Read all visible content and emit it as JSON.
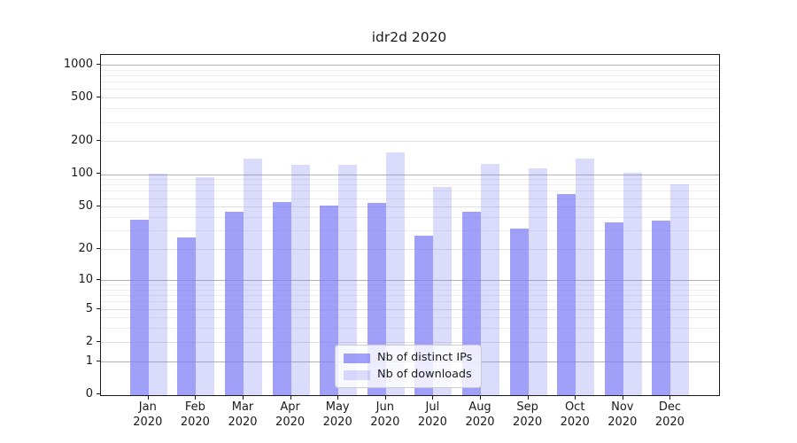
{
  "title": "idr2d 2020",
  "colors": {
    "bar_base": "#7c7cf6",
    "bar_dark_alpha": 0.72,
    "bar_light_alpha": 0.28,
    "grid_major": "#b2b2b2",
    "grid_light": "#e0e0e0",
    "grid_minor": "#eeeeee",
    "axis_frame": "#1a1a1a",
    "legend_border": "#cccccc"
  },
  "chart_data": {
    "type": "bar",
    "title": "idr2d 2020",
    "categories": [
      "Jan",
      "Feb",
      "Mar",
      "Apr",
      "May",
      "Jun",
      "Jul",
      "Aug",
      "Sep",
      "Oct",
      "Nov",
      "Dec"
    ],
    "category_year_line": "2020",
    "series": [
      {
        "name": "Nb of distinct IPs",
        "color": "rgba(124,124,246,0.72)",
        "values": [
          38,
          26,
          45,
          55,
          51,
          54,
          27,
          45,
          31,
          66,
          36,
          37
        ]
      },
      {
        "name": "Nb of downloads",
        "color": "rgba(124,124,246,0.28)",
        "values": [
          101,
          93,
          140,
          122,
          122,
          159,
          76,
          125,
          112,
          139,
          102,
          80
        ]
      }
    ],
    "xlabel": "",
    "ylabel": "",
    "y_ticks": [
      0,
      1,
      2,
      5,
      10,
      20,
      50,
      100,
      200,
      500,
      1000
    ],
    "y_major_gridline_values": [
      1,
      10,
      100,
      1000
    ],
    "y_light_gridline_values": [
      2,
      5,
      20,
      50,
      200,
      500
    ],
    "y_minor_gridline_values": [
      3,
      4,
      6,
      7,
      8,
      9,
      30,
      40,
      60,
      70,
      80,
      90,
      300,
      400,
      600,
      700,
      800,
      900
    ],
    "scale": "log1p",
    "ylim": [
      0,
      1234
    ],
    "grid": true,
    "legend_position": "lower center"
  }
}
